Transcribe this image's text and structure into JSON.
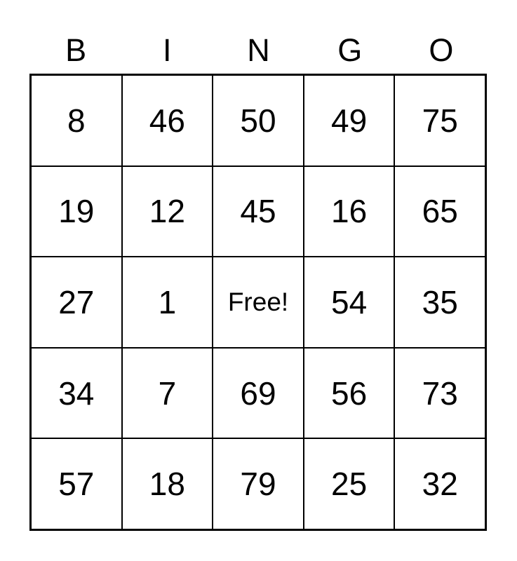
{
  "header": [
    "B",
    "I",
    "N",
    "G",
    "O"
  ],
  "rows": [
    [
      "8",
      "46",
      "50",
      "49",
      "75"
    ],
    [
      "19",
      "12",
      "45",
      "16",
      "65"
    ],
    [
      "27",
      "1",
      "Free!",
      "54",
      "35"
    ],
    [
      "34",
      "7",
      "69",
      "56",
      "73"
    ],
    [
      "57",
      "18",
      "79",
      "25",
      "32"
    ]
  ]
}
